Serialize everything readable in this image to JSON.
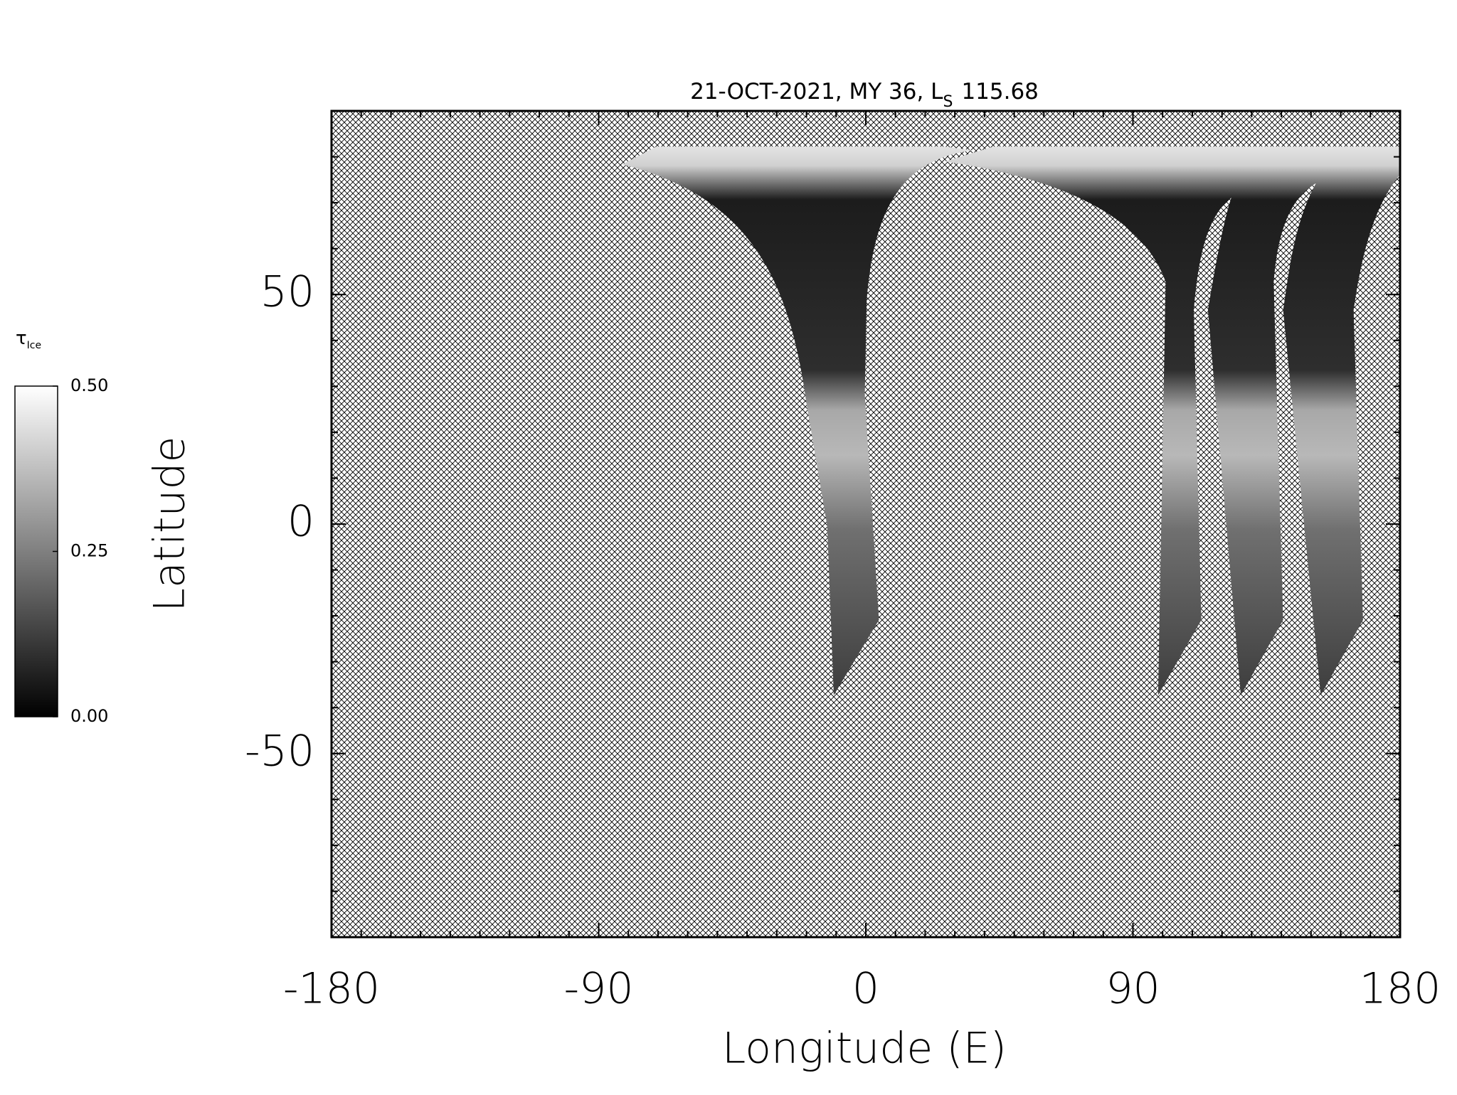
{
  "chart_data": {
    "type": "map",
    "title": "21-OCT-2021, MY 36,  L",
    "title_subscript": "S",
    "title_value": 115.68,
    "xlabel": "Longitude (E)",
    "ylabel": "Latitude",
    "xlim": [
      -180,
      180
    ],
    "ylim": [
      -90,
      90
    ],
    "xticks": [
      -180,
      -90,
      0,
      90,
      180
    ],
    "yticks": [
      -50,
      0,
      50
    ],
    "minor_step": 10,
    "colorbar": {
      "label": "τ",
      "label_subscript": "Ice",
      "lim": [
        0,
        0.5
      ],
      "ticks": [
        {
          "value": 0,
          "label": "0.00"
        },
        {
          "value": 0.25,
          "label": "0.25"
        },
        {
          "value": 0.5,
          "label": "0.50"
        }
      ],
      "colors": [
        "#000000",
        "#ffffff"
      ]
    }
  }
}
